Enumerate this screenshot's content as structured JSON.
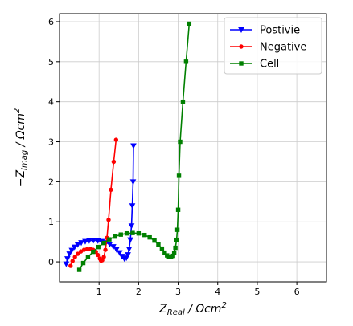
{
  "chart_data": {
    "type": "line",
    "xlabel": {
      "main": "Z",
      "sub": "Real",
      "unit": " / Ωcm",
      "sup": "2"
    },
    "ylabel": {
      "main": "−Z",
      "sub": "Imag",
      "unit": " / Ωcm",
      "sup": "2"
    },
    "xlim": [
      0.0,
      6.75
    ],
    "ylim": [
      -0.5,
      6.2
    ],
    "xticks": [
      1,
      2,
      3,
      4,
      5,
      6
    ],
    "yticks": [
      0,
      1,
      2,
      3,
      4,
      5,
      6
    ],
    "xtick_labels": [
      "1",
      "2",
      "3",
      "4",
      "5",
      "6"
    ],
    "ytick_labels": [
      "0",
      "1",
      "2",
      "3",
      "4",
      "5",
      "6"
    ],
    "grid": true,
    "legend_position": "top-right",
    "series": [
      {
        "name": "Postivie",
        "color": "#0000ff",
        "marker": "triangle-down",
        "x": [
          0.17,
          0.2,
          0.25,
          0.31,
          0.38,
          0.46,
          0.55,
          0.65,
          0.75,
          0.86,
          0.97,
          1.07,
          1.17,
          1.27,
          1.36,
          1.44,
          1.52,
          1.58,
          1.64,
          1.69,
          1.73,
          1.76,
          1.79,
          1.82,
          1.84,
          1.86,
          1.87
        ],
        "y": [
          -0.05,
          0.08,
          0.2,
          0.29,
          0.37,
          0.43,
          0.48,
          0.51,
          0.53,
          0.54,
          0.53,
          0.51,
          0.48,
          0.44,
          0.38,
          0.31,
          0.23,
          0.14,
          0.08,
          0.1,
          0.18,
          0.32,
          0.55,
          0.9,
          1.4,
          2.0,
          2.9
        ]
      },
      {
        "name": "Negative",
        "color": "#ff0000",
        "marker": "circle",
        "x": [
          0.28,
          0.33,
          0.39,
          0.46,
          0.54,
          0.62,
          0.7,
          0.78,
          0.85,
          0.92,
          0.97,
          1.02,
          1.05,
          1.08,
          1.12,
          1.16,
          1.2,
          1.24,
          1.3,
          1.37,
          1.43
        ],
        "y": [
          -0.1,
          0.02,
          0.12,
          0.2,
          0.26,
          0.3,
          0.32,
          0.32,
          0.3,
          0.25,
          0.17,
          0.08,
          0.03,
          0.04,
          0.12,
          0.3,
          0.6,
          1.05,
          1.8,
          2.5,
          3.05
        ]
      },
      {
        "name": "Cell",
        "color": "#008000",
        "marker": "square",
        "x": [
          0.5,
          0.6,
          0.72,
          0.85,
          0.98,
          1.12,
          1.26,
          1.4,
          1.55,
          1.7,
          1.85,
          2.0,
          2.15,
          2.28,
          2.4,
          2.5,
          2.59,
          2.66,
          2.72,
          2.77,
          2.82,
          2.87,
          2.9,
          2.93,
          2.96,
          2.98,
          3.0,
          3.02,
          3.05,
          3.12,
          3.2,
          3.28
        ],
        "y": [
          -0.2,
          -0.03,
          0.12,
          0.25,
          0.37,
          0.47,
          0.56,
          0.63,
          0.68,
          0.71,
          0.72,
          0.71,
          0.67,
          0.61,
          0.53,
          0.43,
          0.33,
          0.23,
          0.16,
          0.12,
          0.12,
          0.15,
          0.22,
          0.35,
          0.55,
          0.8,
          1.3,
          2.15,
          3.0,
          4.0,
          5.0,
          5.95
        ]
      }
    ]
  }
}
